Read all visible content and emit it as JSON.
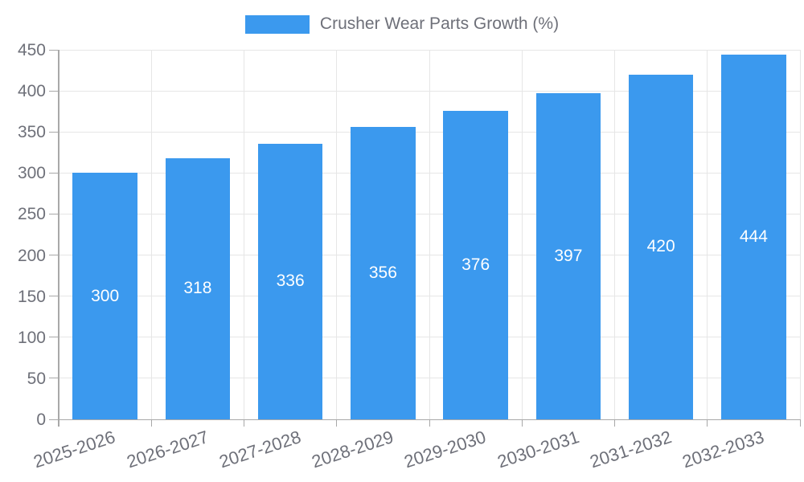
{
  "chart_data": {
    "type": "bar",
    "title": "Crusher Wear Parts Growth (%)",
    "legend": [
      "Crusher Wear Parts Growth (%)"
    ],
    "legend_position": "top-center",
    "categories": [
      "2025-2026",
      "2026-2027",
      "2027-2028",
      "2028-2029",
      "2029-2030",
      "2030-2031",
      "2031-2032",
      "2032-2033"
    ],
    "values": [
      300,
      318,
      336,
      356,
      376,
      397,
      420,
      444
    ],
    "xlabel": "",
    "ylabel": "",
    "ylim": [
      0,
      450
    ],
    "yticks": [
      0,
      50,
      100,
      150,
      200,
      250,
      300,
      350,
      400,
      450
    ],
    "grid": "horizontal-and-vertical",
    "x_label_rotation_deg": -18,
    "colors": {
      "bar": "#3b99ee",
      "value_label": "#ffffff",
      "axis_label": "#6e7079",
      "legend_text": "#6e7079",
      "gridline": "#e6e6e6",
      "axis_line": "#a8a8a8"
    }
  }
}
